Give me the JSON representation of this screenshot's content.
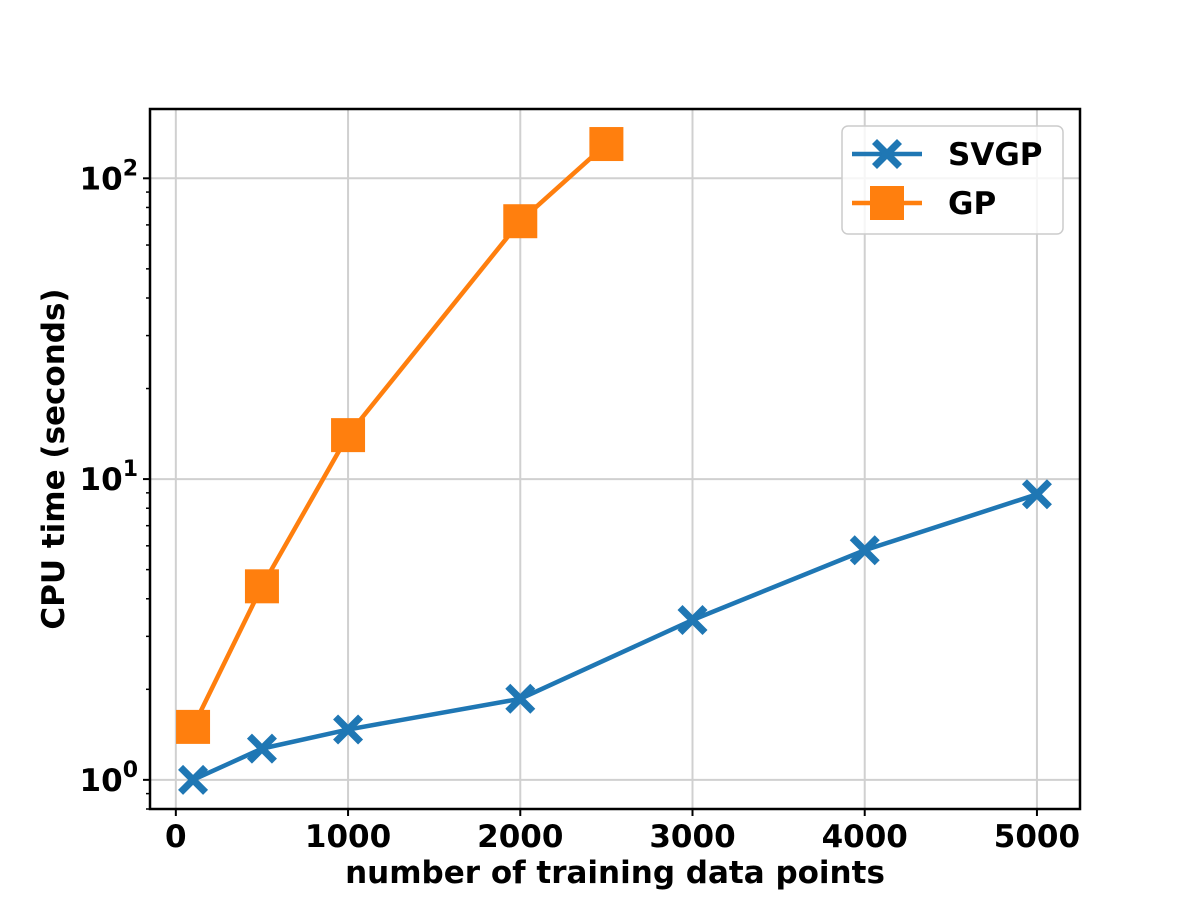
{
  "chart_data": {
    "type": "line",
    "title": "",
    "xlabel": "number of training data points",
    "ylabel": "CPU time (seconds)",
    "xlim": [
      -150,
      5250
    ],
    "ylim": [
      0.8,
      170
    ],
    "yscale": "log",
    "grid": true,
    "legend_position": "top-right",
    "x_ticks": [
      0,
      1000,
      2000,
      3000,
      4000,
      5000
    ],
    "x_tick_labels": [
      "0",
      "1000",
      "2000",
      "3000",
      "4000",
      "5000"
    ],
    "y_ticks": [
      {
        "base": "10",
        "exp": "0",
        "value": 1
      },
      {
        "base": "10",
        "exp": "1",
        "value": 10
      },
      {
        "base": "10",
        "exp": "2",
        "value": 100
      }
    ],
    "series": [
      {
        "name": "SVGP",
        "color": "#1f77b4",
        "marker": "x-filled",
        "x": [
          100,
          500,
          1000,
          2000,
          3000,
          4000,
          5000
        ],
        "values": [
          1.0,
          1.27,
          1.47,
          1.86,
          3.4,
          5.8,
          8.9
        ]
      },
      {
        "name": "GP",
        "color": "#ff7f0e",
        "marker": "square",
        "x": [
          100,
          500,
          1000,
          2500,
          2000
        ],
        "values": [
          1.5,
          4.4,
          14,
          130,
          72
        ]
      }
    ]
  }
}
